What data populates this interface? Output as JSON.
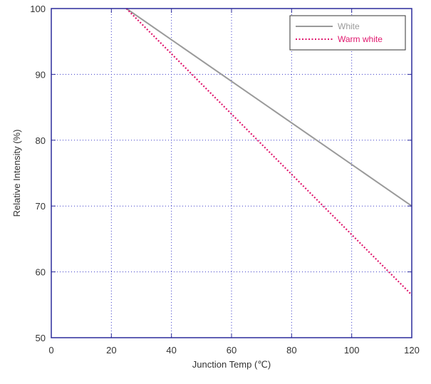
{
  "chart_data": {
    "type": "line",
    "title": "",
    "xlabel": "Junction Temp (℃)",
    "ylabel": "Relative Intensity (%)",
    "xlim": [
      0,
      120
    ],
    "ylim": [
      50,
      100
    ],
    "xticks": [
      0,
      20,
      40,
      60,
      80,
      100,
      120
    ],
    "yticks": [
      50,
      60,
      70,
      80,
      90,
      100
    ],
    "grid": true,
    "legend_position": "top-right",
    "series": [
      {
        "name": "White",
        "color": "#9a9a9a",
        "style": "solid",
        "x": [
          25,
          120
        ],
        "y": [
          100,
          70
        ]
      },
      {
        "name": "Warm white",
        "color": "#e0186e",
        "style": "dotted",
        "x": [
          25,
          120
        ],
        "y": [
          100,
          56.5
        ]
      }
    ]
  },
  "colors": {
    "frame": "#2b2b9b",
    "grid": "#3a3ac8"
  }
}
